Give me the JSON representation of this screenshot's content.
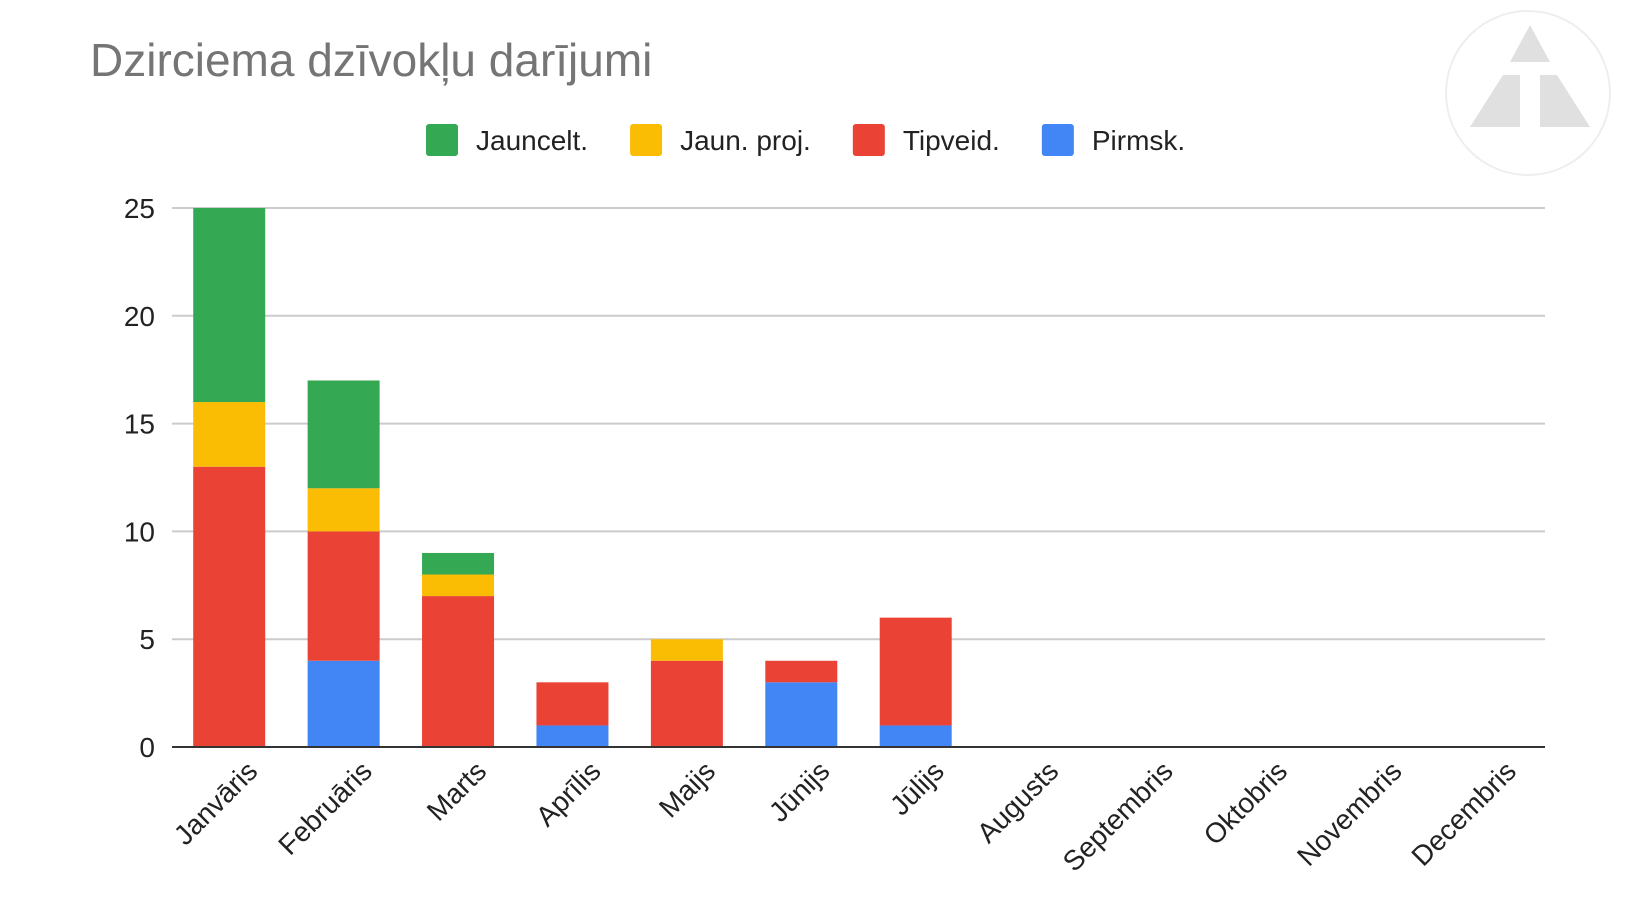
{
  "chart_data": {
    "type": "bar",
    "stacked": true,
    "title": "Dzirciema dzīvokļu darījumi",
    "xlabel": "",
    "ylabel": "",
    "ylim": [
      0,
      25
    ],
    "yticks": [
      0,
      5,
      10,
      15,
      20,
      25
    ],
    "grid": true,
    "legend_position": "top",
    "categories": [
      "Janvāris",
      "Februāris",
      "Marts",
      "Aprīlis",
      "Maijs",
      "Jūnijs",
      "Jūlijs",
      "Augusts",
      "Septembris",
      "Oktobris",
      "Novembris",
      "Decembris"
    ],
    "series": [
      {
        "name": "Pirmsk.",
        "color": "#4285F4",
        "values": [
          0,
          4,
          0,
          1,
          0,
          3,
          1,
          0,
          0,
          0,
          0,
          0
        ]
      },
      {
        "name": "Tipveid.",
        "color": "#EA4335",
        "values": [
          13,
          6,
          7,
          2,
          4,
          1,
          5,
          0,
          0,
          0,
          0,
          0
        ]
      },
      {
        "name": "Jaun. proj.",
        "color": "#FBBC04",
        "values": [
          3,
          2,
          1,
          0,
          1,
          0,
          0,
          0,
          0,
          0,
          0,
          0
        ]
      },
      {
        "name": "Jauncelt.",
        "color": "#34A853",
        "values": [
          9,
          5,
          1,
          0,
          0,
          0,
          0,
          0,
          0,
          0,
          0,
          0
        ]
      }
    ],
    "legend_order": [
      "Jauncelt.",
      "Jaun. proj.",
      "Tipveid.",
      "Pirmsk."
    ]
  },
  "logo": {
    "name": "triangle-logo-icon",
    "color": "#e0e0e0"
  }
}
